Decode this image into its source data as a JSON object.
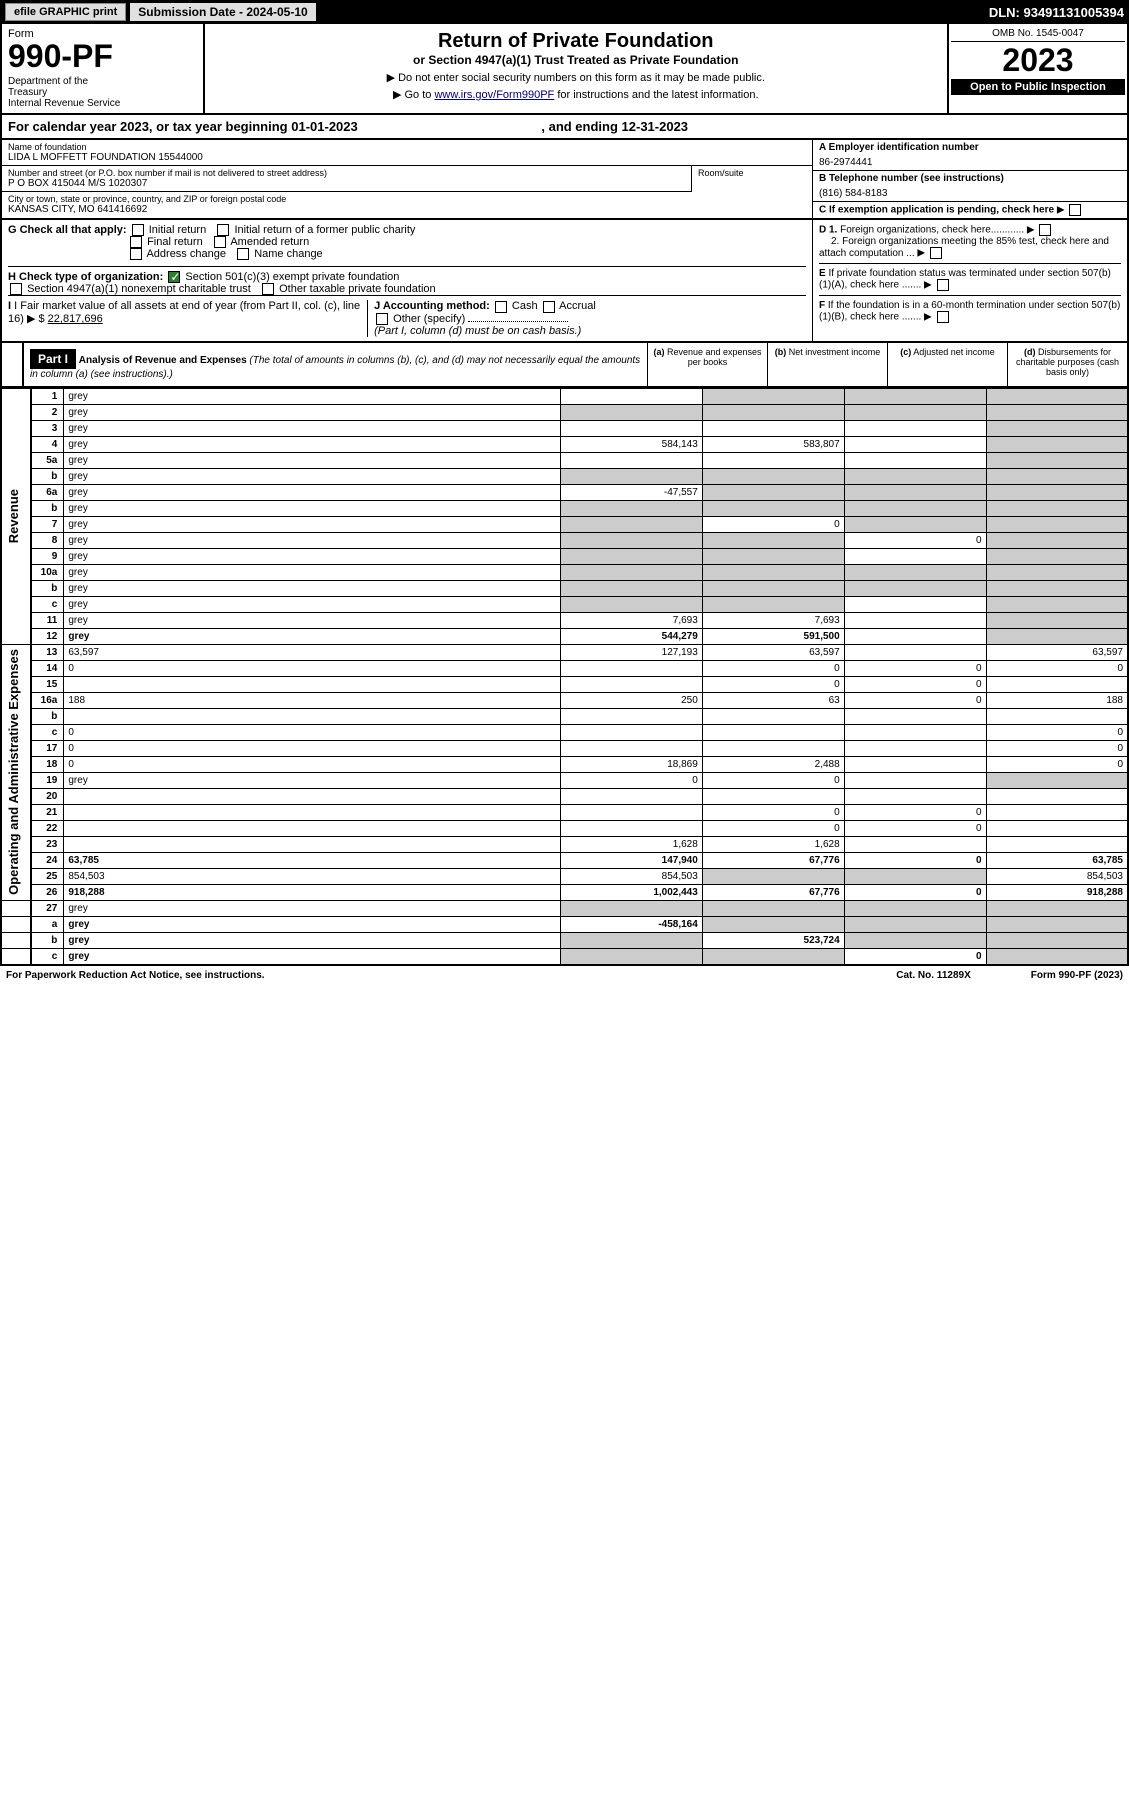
{
  "topbar": {
    "efile": "efile GRAPHIC print",
    "submission": "Submission Date - 2024-05-10",
    "dln": "DLN: 93491131005394"
  },
  "header": {
    "form_label": "Form",
    "form_num": "990-PF",
    "dept": "Department of the Treasury\nInternal Revenue Service",
    "title": "Return of Private Foundation",
    "subtitle": "or Section 4947(a)(1) Trust Treated as Private Foundation",
    "instr1": "▶ Do not enter social security numbers on this form as it may be made public.",
    "instr2": "▶ Go to ",
    "instr_link": "www.irs.gov/Form990PF",
    "instr3": " for instructions and the latest information.",
    "omb": "OMB No. 1545-0047",
    "year": "2023",
    "open": "Open to Public Inspection"
  },
  "cal_year": {
    "text1": "For calendar year 2023, or tax year beginning ",
    "begin": "01-01-2023",
    "text2": ", and ending ",
    "end": "12-31-2023"
  },
  "info": {
    "name_label": "Name of foundation",
    "name": "LIDA L MOFFETT FOUNDATION 15544000",
    "addr_label": "Number and street (or P.O. box number if mail is not delivered to street address)",
    "addr": "P O BOX 415044 M/S 1020307",
    "room_label": "Room/suite",
    "city_label": "City or town, state or province, country, and ZIP or foreign postal code",
    "city": "KANSAS CITY, MO  641416692",
    "ein_label": "A Employer identification number",
    "ein": "86-2974441",
    "tel_label": "B Telephone number (see instructions)",
    "tel": "(816) 584-8183",
    "c_label": "C If exemption application is pending, check here"
  },
  "checks": {
    "g_label": "G Check all that apply:",
    "g1": "Initial return",
    "g2": "Initial return of a former public charity",
    "g3": "Final return",
    "g4": "Amended return",
    "g5": "Address change",
    "g6": "Name change",
    "h_label": "H Check type of organization:",
    "h1": "Section 501(c)(3) exempt private foundation",
    "h2": "Section 4947(a)(1) nonexempt charitable trust",
    "h3": "Other taxable private foundation",
    "i_label": "I Fair market value of all assets at end of year (from Part II, col. (c), line 16)",
    "i_val": "22,817,696",
    "j_label": "J Accounting method:",
    "j1": "Cash",
    "j2": "Accrual",
    "j3": "Other (specify)",
    "j_note": "(Part I, column (d) must be on cash basis.)",
    "d1": "D 1. Foreign organizations, check here............",
    "d2": "2. Foreign organizations meeting the 85% test, check here and attach computation ...",
    "e": "E  If private foundation status was terminated under section 507(b)(1)(A), check here .......",
    "f": "F  If the foundation is in a 60-month termination under section 507(b)(1)(B), check here .......",
    "arrow": "▶"
  },
  "part1": {
    "label": "Part I",
    "title": "Analysis of Revenue and Expenses",
    "note": " (The total of amounts in columns (b), (c), and (d) may not necessarily equal the amounts in column (a) (see instructions).)",
    "col_a": "(a) Revenue and expenses per books",
    "col_b": "(b) Net investment income",
    "col_c": "(c) Adjusted net income",
    "col_d": "(d) Disbursements for charitable purposes (cash basis only)"
  },
  "revenue_label": "Revenue",
  "opex_label": "Operating and Administrative Expenses",
  "rows": [
    {
      "n": "1",
      "d": "grey",
      "a": "",
      "b": "grey",
      "c": "grey"
    },
    {
      "n": "2",
      "d": "grey",
      "a": "grey",
      "b": "grey",
      "c": "grey"
    },
    {
      "n": "3",
      "d": "grey",
      "a": "",
      "b": "",
      "c": ""
    },
    {
      "n": "4",
      "d": "grey",
      "a": "584,143",
      "b": "583,807",
      "c": ""
    },
    {
      "n": "5a",
      "d": "grey",
      "a": "",
      "b": "",
      "c": ""
    },
    {
      "n": "b",
      "d": "grey",
      "a": "grey",
      "b": "grey",
      "c": "grey"
    },
    {
      "n": "6a",
      "d": "grey",
      "a": "-47,557",
      "b": "grey",
      "c": "grey"
    },
    {
      "n": "b",
      "d": "grey",
      "a": "grey",
      "b": "grey",
      "c": "grey"
    },
    {
      "n": "7",
      "d": "grey",
      "a": "grey",
      "b": "0",
      "c": "grey"
    },
    {
      "n": "8",
      "d": "grey",
      "a": "grey",
      "b": "grey",
      "c": "0"
    },
    {
      "n": "9",
      "d": "grey",
      "a": "grey",
      "b": "grey",
      "c": ""
    },
    {
      "n": "10a",
      "d": "grey",
      "a": "grey",
      "b": "grey",
      "c": "grey"
    },
    {
      "n": "b",
      "d": "grey",
      "a": "grey",
      "b": "grey",
      "c": "grey"
    },
    {
      "n": "c",
      "d": "grey",
      "a": "grey",
      "b": "grey",
      "c": ""
    },
    {
      "n": "11",
      "d": "grey",
      "a": "7,693",
      "b": "7,693",
      "c": ""
    },
    {
      "n": "12",
      "d": "grey",
      "a": "544,279",
      "b": "591,500",
      "c": "",
      "bold": true
    }
  ],
  "exp_rows": [
    {
      "n": "13",
      "d": "63,597",
      "a": "127,193",
      "b": "63,597",
      "c": ""
    },
    {
      "n": "14",
      "d": "0",
      "a": "",
      "b": "0",
      "c": "0"
    },
    {
      "n": "15",
      "d": "",
      "a": "",
      "b": "0",
      "c": "0"
    },
    {
      "n": "16a",
      "d": "188",
      "a": "250",
      "b": "63",
      "c": "0"
    },
    {
      "n": "b",
      "d": "",
      "a": "",
      "b": "",
      "c": ""
    },
    {
      "n": "c",
      "d": "0",
      "a": "",
      "b": "",
      "c": ""
    },
    {
      "n": "17",
      "d": "0",
      "a": "",
      "b": "",
      "c": ""
    },
    {
      "n": "18",
      "d": "0",
      "a": "18,869",
      "b": "2,488",
      "c": ""
    },
    {
      "n": "19",
      "d": "grey",
      "a": "0",
      "b": "0",
      "c": ""
    },
    {
      "n": "20",
      "d": "",
      "a": "",
      "b": "",
      "c": ""
    },
    {
      "n": "21",
      "d": "",
      "a": "",
      "b": "0",
      "c": "0"
    },
    {
      "n": "22",
      "d": "",
      "a": "",
      "b": "0",
      "c": "0"
    },
    {
      "n": "23",
      "d": "",
      "a": "1,628",
      "b": "1,628",
      "c": ""
    },
    {
      "n": "24",
      "d": "63,785",
      "a": "147,940",
      "b": "67,776",
      "c": "0",
      "bold": true
    },
    {
      "n": "25",
      "d": "854,503",
      "a": "854,503",
      "b": "grey",
      "c": "grey"
    },
    {
      "n": "26",
      "d": "918,288",
      "a": "1,002,443",
      "b": "67,776",
      "c": "0",
      "bold": true
    }
  ],
  "net_rows": [
    {
      "n": "27",
      "d": "grey",
      "a": "grey",
      "b": "grey",
      "c": "grey"
    },
    {
      "n": "a",
      "d": "grey",
      "a": "-458,164",
      "b": "grey",
      "c": "grey",
      "bold": true
    },
    {
      "n": "b",
      "d": "grey",
      "a": "grey",
      "b": "523,724",
      "c": "grey",
      "bold": true
    },
    {
      "n": "c",
      "d": "grey",
      "a": "grey",
      "b": "grey",
      "c": "0",
      "bold": true
    }
  ],
  "footer": {
    "pra": "For Paperwork Reduction Act Notice, see instructions.",
    "cat": "Cat. No. 11289X",
    "form": "Form 990-PF (2023)"
  }
}
